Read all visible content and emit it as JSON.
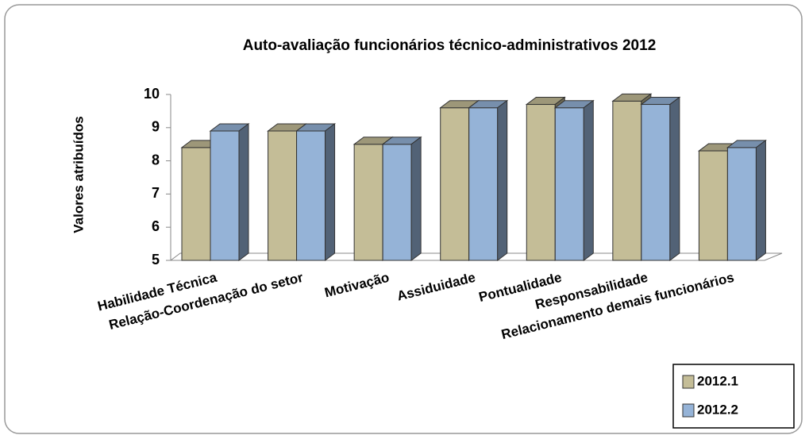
{
  "chart_data": {
    "type": "bar3d",
    "title": "Auto-avaliação funcionários técnico-administrativos 2012",
    "y_label": "Valores atribuídos",
    "categories": [
      "Habilidade Técnica",
      "Relação-Coordenação do setor",
      "Motivação",
      "Assiduidade",
      "Pontualidade",
      "Responsabilidade",
      "Relacionamento demais funcionários"
    ],
    "series": [
      {
        "name": "2012.1",
        "color": "#c4bd97",
        "values": [
          8.4,
          8.9,
          8.5,
          9.6,
          9.7,
          9.8,
          8.3
        ]
      },
      {
        "name": "2012.2",
        "color": "#95b3d7",
        "values": [
          8.9,
          8.9,
          8.5,
          9.6,
          9.6,
          9.7,
          8.4
        ]
      }
    ],
    "ylim": [
      5,
      10
    ],
    "yticks": [
      5,
      6,
      7,
      8,
      9,
      10
    ],
    "legend": "bottom-right"
  }
}
